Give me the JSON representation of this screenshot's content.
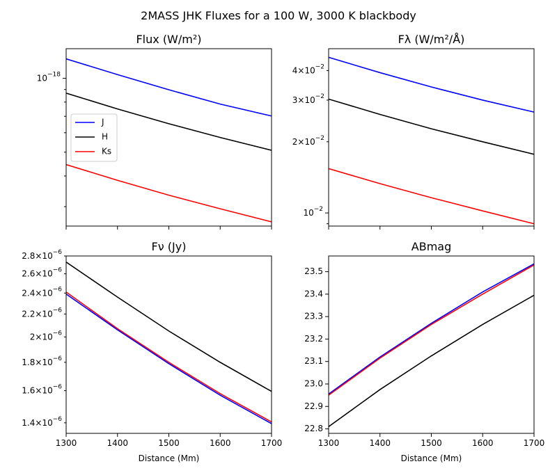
{
  "figure": {
    "title": "2MASS JHK Fluxes for a 100 W, 3000 K blackbody"
  },
  "chart_data": [
    {
      "type": "line",
      "title": "Flux (W/m²)",
      "xlabel": "",
      "ylabel": "",
      "xscale": "linear",
      "yscale": "log",
      "xlim": [
        1300,
        1700
      ],
      "ylim": [
        2.5e-19,
        1.32e-18
      ],
      "xticks": [
        1300,
        1400,
        1500,
        1600,
        1700
      ],
      "xtick_labels_shown": false,
      "yticks_major": [
        1e-18
      ],
      "ytick_labels": [
        "10⁻¹⁸"
      ],
      "yticks_minor": [
        3e-19,
        4e-19,
        5e-19,
        6e-19,
        7e-19,
        8e-19,
        9e-19
      ],
      "legend": {
        "position": "center-left",
        "entries": [
          "J",
          "H",
          "Ks"
        ]
      },
      "series": [
        {
          "name": "J",
          "color": "#0000ff",
          "x": [
            1300,
            1400,
            1500,
            1600,
            1700
          ],
          "values": [
            1.2e-18,
            1.035e-18,
            8.98e-19,
            7.85e-19,
            7.02e-19
          ]
        },
        {
          "name": "H",
          "color": "#000000",
          "x": [
            1300,
            1400,
            1500,
            1600,
            1700
          ],
          "values": [
            8.7e-19,
            7.5e-19,
            6.53e-19,
            5.74e-19,
            5.09e-19
          ]
        },
        {
          "name": "Ks",
          "color": "#ff0000",
          "x": [
            1300,
            1400,
            1500,
            1600,
            1700
          ],
          "values": [
            4.45e-19,
            3.84e-19,
            3.34e-19,
            2.94e-19,
            2.6e-19
          ]
        }
      ]
    },
    {
      "type": "line",
      "title": "Fλ (W/m²/Å)",
      "xlabel": "",
      "ylabel": "",
      "xscale": "linear",
      "yscale": "log",
      "xlim": [
        1300,
        1700
      ],
      "ylim": [
        0.0088,
        0.0495
      ],
      "xticks": [
        1300,
        1400,
        1500,
        1600,
        1700
      ],
      "xtick_labels_shown": false,
      "yticks_major": [
        0.01
      ],
      "ytick_labels": [
        "10⁻²"
      ],
      "yticks_labeled_minor": [
        {
          "value": 0.02,
          "mant": "2",
          "label": "2×10⁻²"
        },
        {
          "value": 0.03,
          "mant": "3",
          "label": "3×10⁻²"
        },
        {
          "value": 0.04,
          "mant": "4",
          "label": "4×10⁻²"
        }
      ],
      "yticks_minor": [
        0.009
      ],
      "series": [
        {
          "name": "J",
          "color": "#0000ff",
          "x": [
            1300,
            1400,
            1500,
            1600,
            1700
          ],
          "values": [
            0.0455,
            0.0392,
            0.0341,
            0.03,
            0.0267
          ]
        },
        {
          "name": "H",
          "color": "#000000",
          "x": [
            1300,
            1400,
            1500,
            1600,
            1700
          ],
          "values": [
            0.0303,
            0.0261,
            0.0227,
            0.02,
            0.0177
          ]
        },
        {
          "name": "Ks",
          "color": "#ff0000",
          "x": [
            1300,
            1400,
            1500,
            1600,
            1700
          ],
          "values": [
            0.0154,
            0.0133,
            0.0116,
            0.0102,
            0.009
          ]
        }
      ]
    },
    {
      "type": "line",
      "title": "Fν (Jy)",
      "xlabel": "Distance (Mm)",
      "ylabel": "",
      "xscale": "linear",
      "yscale": "log",
      "xlim": [
        1300,
        1700
      ],
      "ylim": [
        1.34e-06,
        2.8e-06
      ],
      "xticks": [
        1300,
        1400,
        1500,
        1600,
        1700
      ],
      "xtick_labels": [
        "1300",
        "1400",
        "1500",
        "1600",
        "1700"
      ],
      "yticks_labeled_minor": [
        {
          "value": 1.4e-06,
          "mant": "1.4",
          "label": "1.4×10⁻⁶"
        },
        {
          "value": 1.6e-06,
          "mant": "1.6",
          "label": "1.6×10⁻⁶"
        },
        {
          "value": 1.8e-06,
          "mant": "1.8",
          "label": "1.8×10⁻⁶"
        },
        {
          "value": 2e-06,
          "mant": "2",
          "label": "2×10⁻⁶"
        },
        {
          "value": 2.2e-06,
          "mant": "2.2",
          "label": "2.2×10⁻⁶"
        },
        {
          "value": 2.4e-06,
          "mant": "2.4",
          "label": "2.4×10⁻⁶"
        },
        {
          "value": 2.6e-06,
          "mant": "2.6",
          "label": "2.6×10⁻⁶"
        },
        {
          "value": 2.8e-06,
          "mant": "2.8",
          "label": "2.8×10⁻⁶"
        }
      ],
      "series": [
        {
          "name": "J",
          "color": "#0000ff",
          "x": [
            1300,
            1400,
            1500,
            1600,
            1700
          ],
          "values": [
            2.39e-06,
            2.06e-06,
            1.79e-06,
            1.57e-06,
            1.395e-06
          ]
        },
        {
          "name": "H",
          "color": "#000000",
          "x": [
            1300,
            1400,
            1500,
            1600,
            1700
          ],
          "values": [
            2.73e-06,
            2.36e-06,
            2.05e-06,
            1.8e-06,
            1.595e-06
          ]
        },
        {
          "name": "Ks",
          "color": "#ff0000",
          "x": [
            1300,
            1400,
            1500,
            1600,
            1700
          ],
          "values": [
            2.41e-06,
            2.07e-06,
            1.8e-06,
            1.58e-06,
            1.405e-06
          ]
        }
      ]
    },
    {
      "type": "line",
      "title": "ABmag",
      "xlabel": "Distance (Mm)",
      "ylabel": "",
      "xscale": "linear",
      "yscale": "linear",
      "xlim": [
        1300,
        1700
      ],
      "ylim": [
        22.78,
        23.57
      ],
      "xticks": [
        1300,
        1400,
        1500,
        1600,
        1700
      ],
      "xtick_labels": [
        "1300",
        "1400",
        "1500",
        "1600",
        "1700"
      ],
      "yticks": [
        22.8,
        22.9,
        23.0,
        23.1,
        23.2,
        23.3,
        23.4,
        23.5
      ],
      "ytick_labels": [
        "22.8",
        "22.9",
        "23.0",
        "23.1",
        "23.2",
        "23.3",
        "23.4",
        "23.5"
      ],
      "series": [
        {
          "name": "J",
          "color": "#0000ff",
          "x": [
            1300,
            1400,
            1500,
            1600,
            1700
          ],
          "values": [
            22.955,
            23.12,
            23.27,
            23.41,
            23.535
          ]
        },
        {
          "name": "H",
          "color": "#000000",
          "x": [
            1300,
            1400,
            1500,
            1600,
            1700
          ],
          "values": [
            22.81,
            22.975,
            23.125,
            23.265,
            23.395
          ]
        },
        {
          "name": "Ks",
          "color": "#ff0000",
          "x": [
            1300,
            1400,
            1500,
            1600,
            1700
          ],
          "values": [
            22.95,
            23.115,
            23.265,
            23.4,
            23.53
          ]
        }
      ]
    }
  ]
}
